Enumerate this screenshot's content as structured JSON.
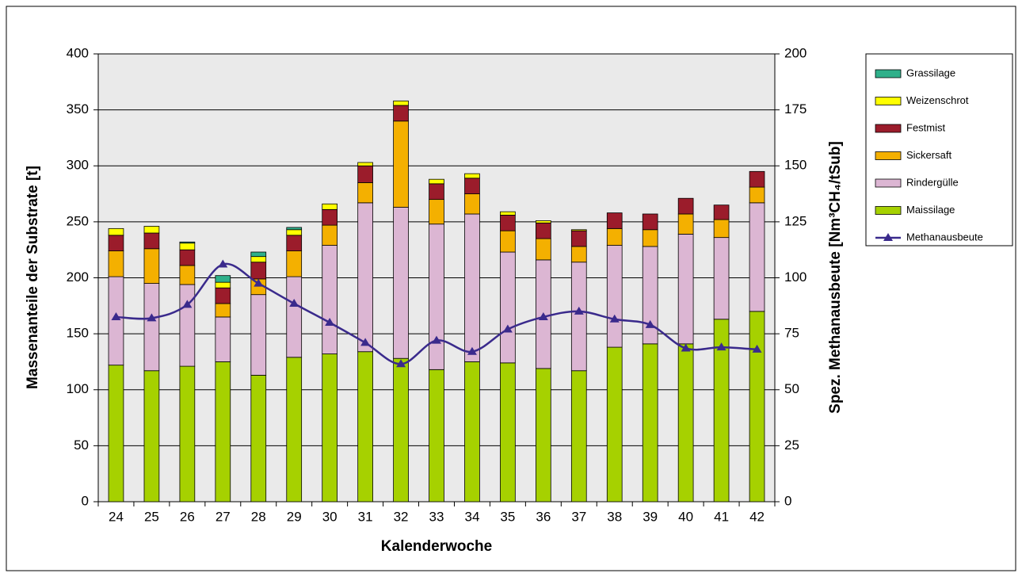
{
  "chart_data": {
    "type": "bar",
    "x_label": "Kalenderwoche",
    "y_label": "Massenanteile der Substrate [t]",
    "y2_label": "Spez. Methanausbeute [Nm³CH₄/tSub]",
    "categories": [
      "24",
      "25",
      "26",
      "27",
      "28",
      "29",
      "30",
      "31",
      "32",
      "33",
      "34",
      "35",
      "36",
      "37",
      "38",
      "39",
      "40",
      "41",
      "42"
    ],
    "series": [
      {
        "name": "Maissilage",
        "type": "bar",
        "color": "#a6d100",
        "values": [
          122,
          117,
          121,
          125,
          113,
          129,
          132,
          134,
          128,
          118,
          125,
          124,
          119,
          117,
          138,
          141,
          141,
          163,
          170
        ]
      },
      {
        "name": "Rindergülle",
        "type": "bar",
        "color": "#dcb6d3",
        "values": [
          79,
          78,
          73,
          40,
          72,
          72,
          97,
          133,
          135,
          130,
          132,
          99,
          97,
          97,
          91,
          87,
          98,
          73,
          97
        ]
      },
      {
        "name": "Sickersaft",
        "type": "bar",
        "color": "#f4b000",
        "values": [
          23,
          31,
          17,
          12,
          14,
          23,
          18,
          18,
          77,
          22,
          18,
          19,
          19,
          14,
          15,
          15,
          18,
          16,
          14
        ]
      },
      {
        "name": "Festmist",
        "type": "bar",
        "color": "#9b1c2b",
        "values": [
          14,
          14,
          14,
          14,
          15,
          14,
          14,
          15,
          14,
          14,
          14,
          14,
          14,
          14,
          14,
          14,
          14,
          13,
          14
        ]
      },
      {
        "name": "Weizenschrot",
        "type": "bar",
        "color": "#ffff00",
        "values": [
          6,
          6,
          6,
          5,
          5,
          5,
          5,
          3,
          4,
          4,
          4,
          3,
          2,
          1,
          0,
          0,
          0,
          0,
          0
        ]
      },
      {
        "name": "Grassilage",
        "type": "bar",
        "color": "#2fb08a",
        "values": [
          0,
          0,
          1,
          6,
          4,
          2,
          0,
          0,
          0,
          0,
          0,
          0,
          0,
          0,
          0,
          0,
          0,
          0,
          0
        ]
      },
      {
        "name": "Methanausbeute",
        "type": "line",
        "axis": "y2",
        "color": "#3a2a8c",
        "values": [
          82.5,
          82,
          88,
          106,
          97.5,
          88.5,
          80,
          71,
          61.5,
          72,
          67,
          77,
          82.5,
          85,
          81.5,
          79,
          68.5,
          69,
          68
        ]
      }
    ],
    "ylim": [
      0,
      400
    ],
    "yticks": [
      0,
      50,
      100,
      150,
      200,
      250,
      300,
      350,
      400
    ],
    "y2lim": [
      0,
      200
    ],
    "y2ticks": [
      0,
      25,
      50,
      75,
      100,
      125,
      150,
      175,
      200
    ],
    "grid": true,
    "legend": "right"
  }
}
